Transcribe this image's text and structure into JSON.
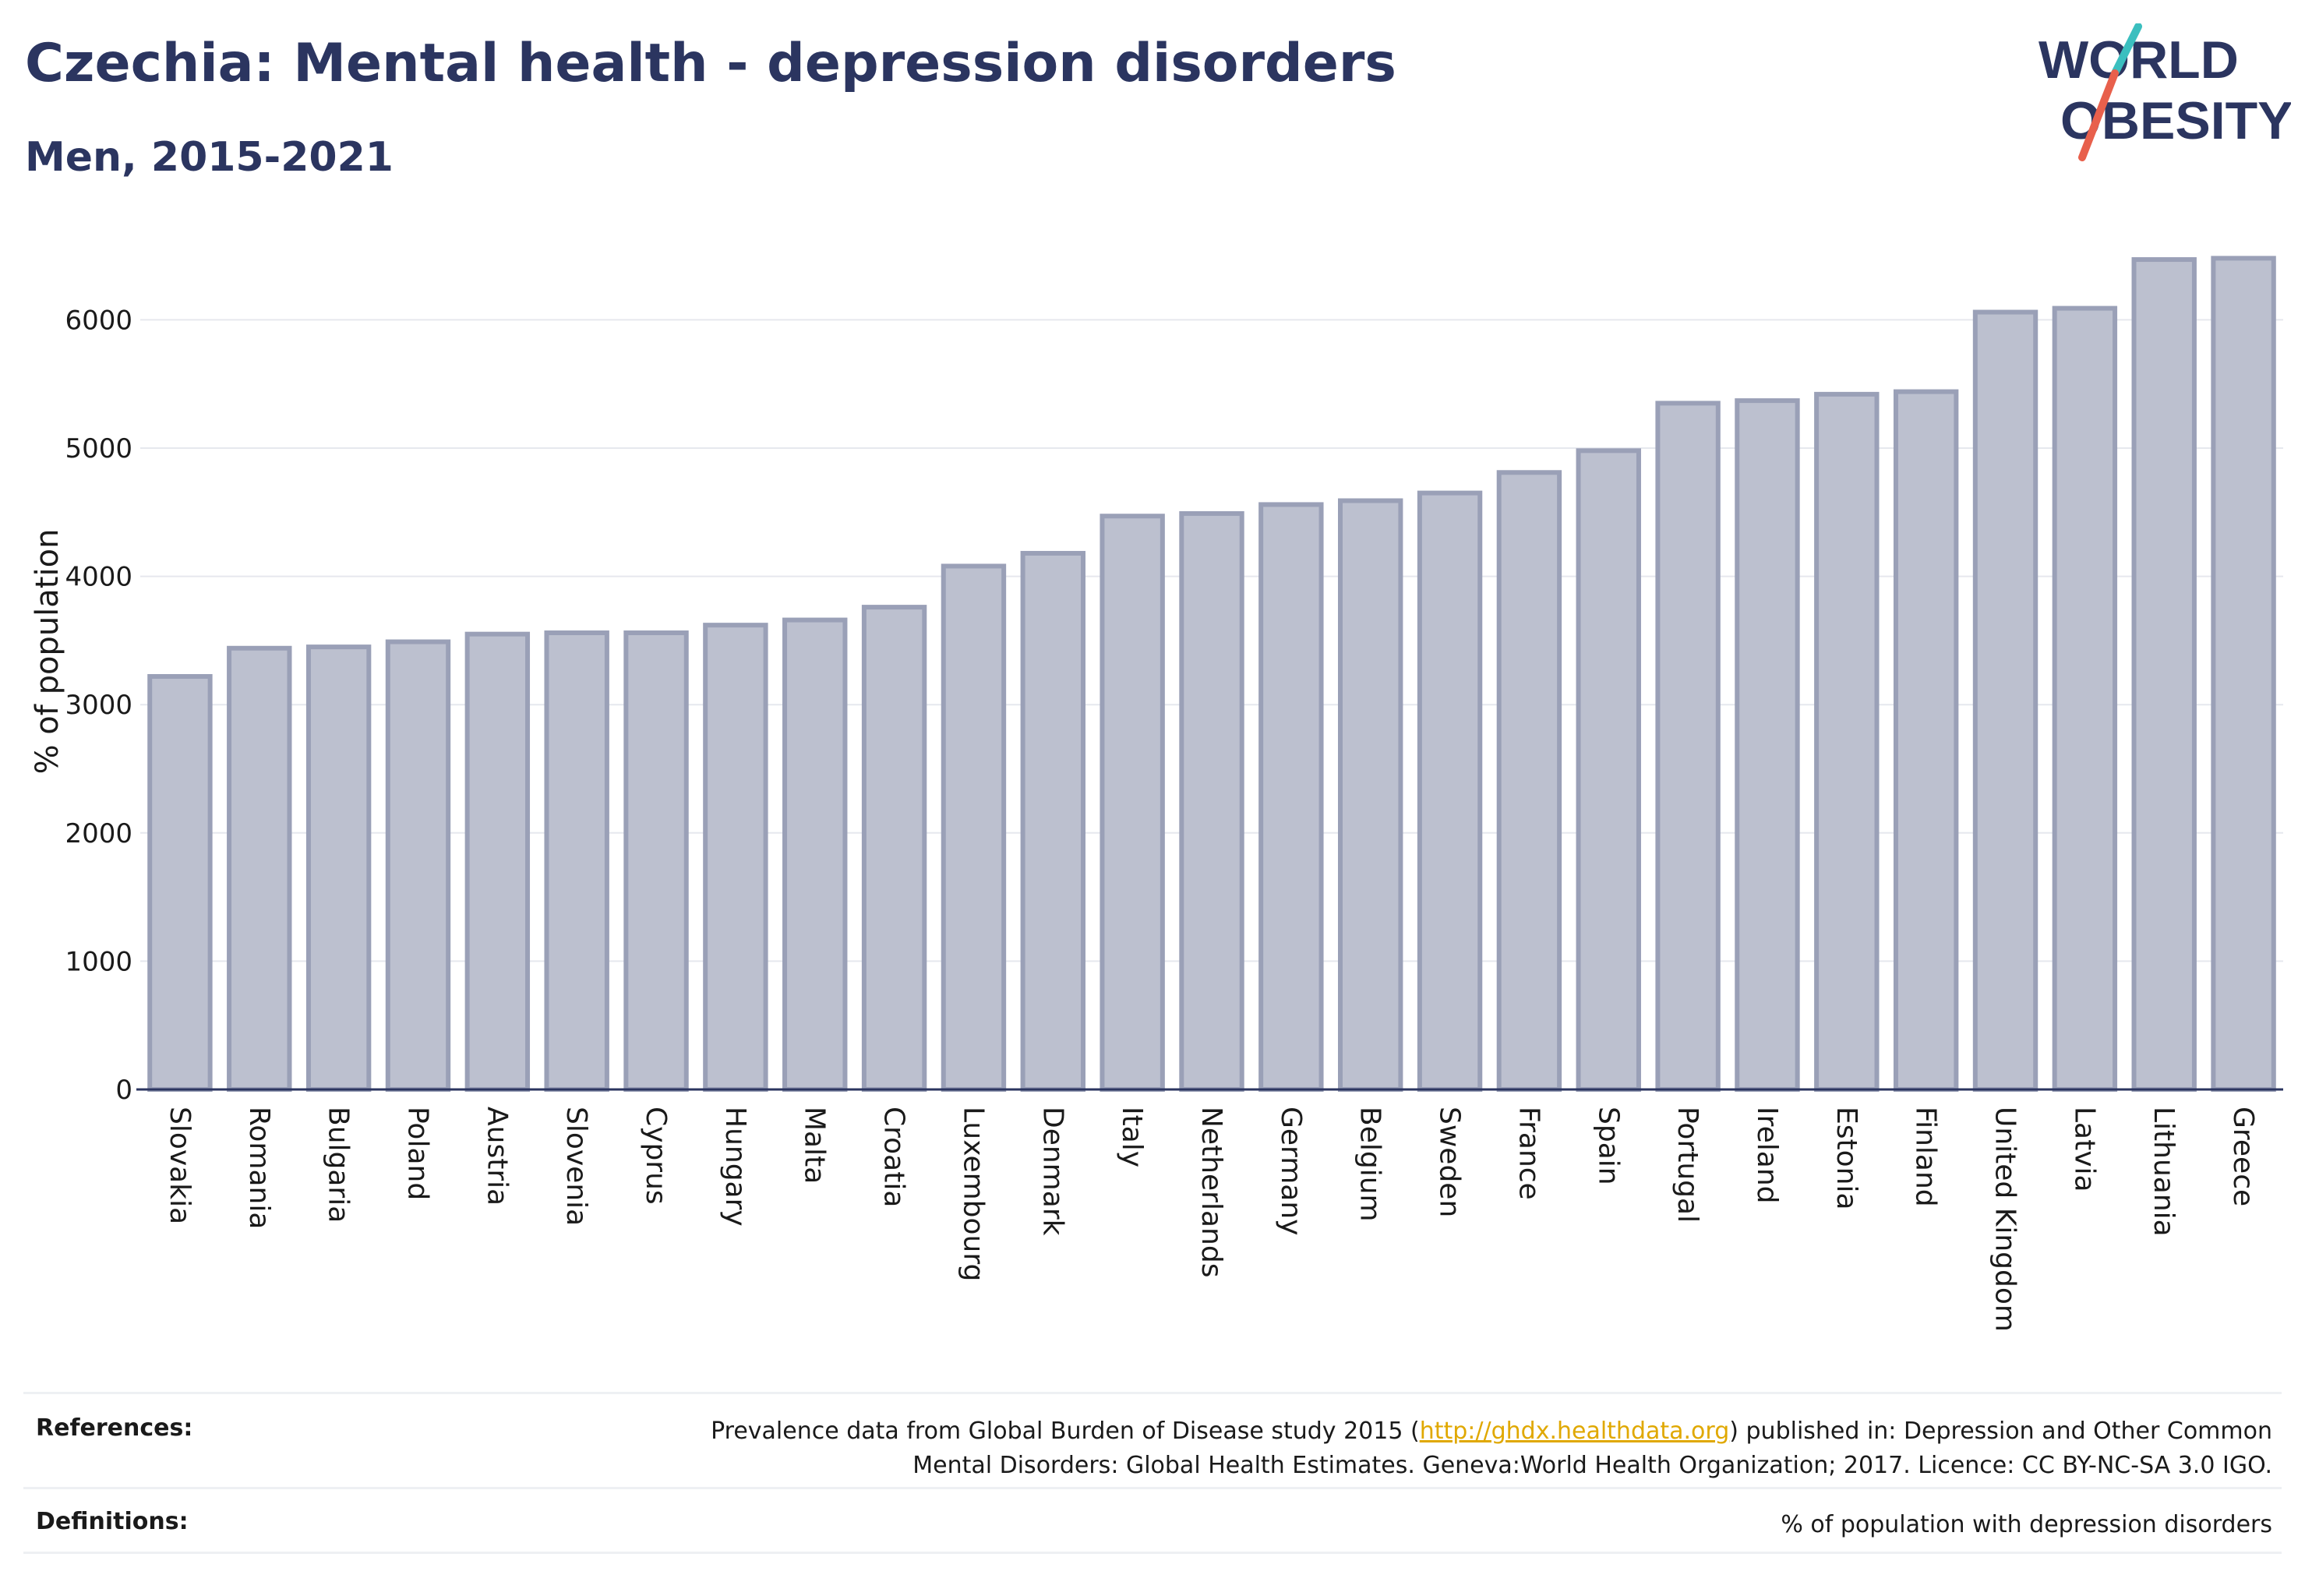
{
  "title": "Czechia: Mental health - depression disorders",
  "subtitle": "Men, 2015-2021",
  "logo": {
    "line1": "WORLD",
    "line2": "OBESITY"
  },
  "colors": {
    "bar_fill": "#bcc0cf",
    "bar_stroke": "#9aa0b7",
    "title": "#2b3560",
    "link": "#e0a800",
    "logo_teal": "#3bbfbf",
    "logo_red": "#e8604c"
  },
  "chart_data": {
    "type": "bar",
    "title": "Czechia: Mental health - depression disorders",
    "subtitle": "Men, 2015-2021",
    "xlabel": "",
    "ylabel": "% of population",
    "ylim": [
      0,
      6500
    ],
    "yticks": [
      0,
      1000,
      2000,
      3000,
      4000,
      5000,
      6000
    ],
    "grid": true,
    "categories": [
      "Slovakia",
      "Romania",
      "Bulgaria",
      "Poland",
      "Austria",
      "Slovenia",
      "Cyprus",
      "Hungary",
      "Malta",
      "Croatia",
      "Luxembourg",
      "Denmark",
      "Italy",
      "Netherlands",
      "Germany",
      "Belgium",
      "Sweden",
      "France",
      "Spain",
      "Portugal",
      "Ireland",
      "Estonia",
      "Finland",
      "United Kingdom",
      "Latvia",
      "Lithuania",
      "Greece"
    ],
    "values": [
      3220,
      3440,
      3450,
      3490,
      3550,
      3560,
      3560,
      3620,
      3660,
      3760,
      4080,
      4180,
      4470,
      4490,
      4560,
      4590,
      4650,
      4810,
      4980,
      5350,
      5370,
      5420,
      5440,
      6060,
      6090,
      6470,
      6480
    ]
  },
  "footer": {
    "references_label": "References:",
    "references_text_before": "Prevalence data from Global Burden of Disease study 2015 (",
    "references_link": "http://ghdx.healthdata.org",
    "references_text_after": ") published in: Depression and Other Common",
    "references_text_line2": "Mental Disorders: Global Health Estimates. Geneva:World Health Organization; 2017. Licence: CC BY-NC-SA 3.0 IGO.",
    "definitions_label": "Definitions:",
    "definitions_text": "% of population with depression disorders"
  }
}
